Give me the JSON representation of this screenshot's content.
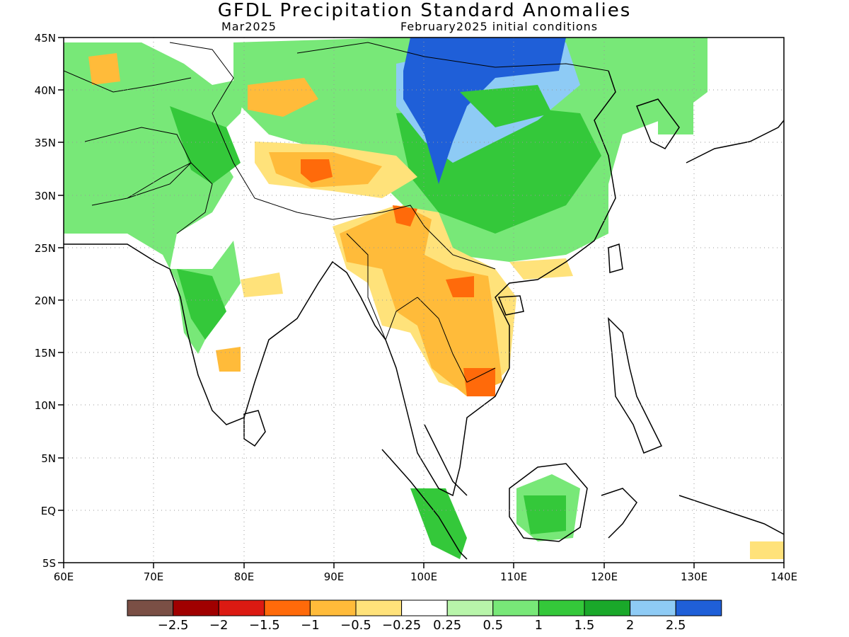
{
  "title": "GFDL Precipitation Standard Anomalies",
  "valid_month": "Mar2025",
  "init_conditions": "February2025 initial conditions",
  "map": {
    "lon_range": [
      60,
      140
    ],
    "lat_range": [
      -5,
      45
    ],
    "grid": "dotted",
    "lon_ticks": [
      "60E",
      "70E",
      "80E",
      "90E",
      "100E",
      "110E",
      "120E",
      "130E",
      "140E"
    ],
    "lat_ticks": [
      "45N",
      "40N",
      "35N",
      "30N",
      "25N",
      "20N",
      "15N",
      "10N",
      "5N",
      "EQ",
      "5S"
    ]
  },
  "colorbar": {
    "colors": [
      "#7a4f45",
      "#a00000",
      "#dc1a12",
      "#ff6a0a",
      "#ffbb3a",
      "#ffe27a",
      "#ffffff",
      "#b8f5aa",
      "#78e878",
      "#34c83a",
      "#1aa82a",
      "#8ecbf5",
      "#1f5fd8"
    ],
    "labels": [
      "−2.5",
      "−2",
      "−1.5",
      "−1",
      "−0.5",
      "−0.25",
      "0.25",
      "0.5",
      "1",
      "1.5",
      "2",
      "2.5"
    ]
  }
}
